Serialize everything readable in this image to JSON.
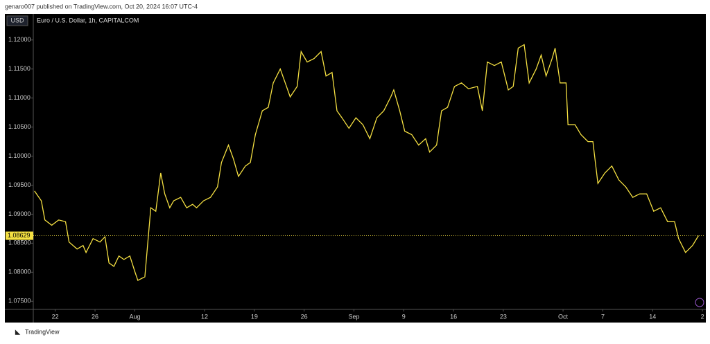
{
  "header": {
    "byline": "genaro007 published on TradingView.com, Oct 20, 2024 16:07 UTC-4"
  },
  "chart_data": {
    "type": "line",
    "title": "Euro / U.S. Dollar, 1h, CAPITALCOM",
    "currency": "USD",
    "color": "#f5e042",
    "x": [
      -2.08,
      -1.39,
      -1.04,
      -0.35,
      0.35,
      1.04,
      1.39,
      2.2,
      2.8,
      3.1,
      3.8,
      4.5,
      5.0,
      5.4,
      5.9,
      6.4,
      6.9,
      7.5,
      8.0,
      8.3,
      9.0,
      9.6,
      10.1,
      10.6,
      11.0,
      11.5,
      11.9,
      12.6,
      13.2,
      13.8,
      14.2,
      14.9,
      15.6,
      16.3,
      16.7,
      17.4,
      17.9,
      18.4,
      19.1,
      19.6,
      20.1,
      20.8,
      21.4,
      21.9,
      22.6,
      23.1,
      23.6,
      24.3,
      24.7,
      25.3,
      26.0,
      26.7,
      27.2,
      27.8,
      28.3,
      28.8,
      29.5,
      30.2,
      30.9,
      31.6,
      32.3,
      33.0,
      33.7,
      34.0,
      34.6,
      35.1,
      35.8,
      36.5,
      37.2,
      37.6,
      38.3,
      38.8,
      39.4,
      40.1,
      40.8,
      41.5,
      42.4,
      42.9,
      43.4,
      44.1,
      44.8,
      45.5,
      46.0,
      46.5,
      47.1,
      47.6,
      48.3,
      48.8,
      49.3,
      49.9,
      50.2,
      50.7,
      51.3,
      51.5,
      52.2,
      52.8,
      53.5,
      54.0,
      54.5,
      55.2,
      55.9,
      56.6,
      57.3,
      58.0,
      58.7,
      59.4,
      60.1,
      60.8,
      61.5,
      62.2,
      62.6,
      63.3,
      64.0,
      64.6
    ],
    "values": [
      1.094,
      1.0923,
      1.089,
      1.0881,
      1.089,
      1.0887,
      1.0852,
      1.084,
      1.0846,
      1.0834,
      1.0858,
      1.0852,
      1.0861,
      1.0816,
      1.081,
      1.0828,
      1.0822,
      1.0828,
      1.0801,
      1.0786,
      1.0792,
      1.0911,
      1.0905,
      1.0971,
      1.0935,
      1.0911,
      1.0923,
      1.0929,
      1.0911,
      1.0917,
      1.0911,
      1.0923,
      1.0929,
      1.0947,
      1.0989,
      1.1019,
      1.0995,
      1.0965,
      1.0983,
      1.0989,
      1.1037,
      1.1078,
      1.1084,
      1.1126,
      1.115,
      1.1126,
      1.1102,
      1.112,
      1.118,
      1.1162,
      1.1168,
      1.118,
      1.1138,
      1.1144,
      1.1078,
      1.1066,
      1.1048,
      1.1066,
      1.1054,
      1.103,
      1.1066,
      1.1078,
      1.1102,
      1.1114,
      1.1078,
      1.1043,
      1.1037,
      1.1019,
      1.103,
      1.1007,
      1.1019,
      1.1078,
      1.1084,
      1.112,
      1.1126,
      1.1116,
      1.112,
      1.1078,
      1.1162,
      1.1156,
      1.1162,
      1.1114,
      1.112,
      1.1186,
      1.1192,
      1.1126,
      1.115,
      1.1174,
      1.1138,
      1.1168,
      1.1186,
      1.1126,
      1.1126,
      1.1054,
      1.1054,
      1.1037,
      1.1025,
      1.1025,
      1.0953,
      1.0971,
      1.0983,
      1.0959,
      1.0947,
      1.0929,
      1.0935,
      1.0935,
      1.0905,
      1.0911,
      1.0887,
      1.0887,
      1.0858,
      1.0834,
      1.0846,
      1.08629
    ],
    "xlim": [
      -2.2,
      65.2
    ],
    "ylim": [
      1.0736,
      1.1245
    ],
    "xticks": [
      {
        "value": 0,
        "label": "22"
      },
      {
        "value": 4,
        "label": "26"
      },
      {
        "value": 8,
        "label": "Aug"
      },
      {
        "value": 15,
        "label": "12"
      },
      {
        "value": 20,
        "label": "19"
      },
      {
        "value": 25,
        "label": "26"
      },
      {
        "value": 30,
        "label": "Sep"
      },
      {
        "value": 35,
        "label": "9"
      },
      {
        "value": 40,
        "label": "16"
      },
      {
        "value": 45,
        "label": "23"
      },
      {
        "value": 51,
        "label": "Oct"
      },
      {
        "value": 55,
        "label": "7"
      },
      {
        "value": 60,
        "label": "14"
      },
      {
        "value": 65,
        "label": "2"
      }
    ],
    "yticks": [
      {
        "value": 1.075,
        "label": "1.07500"
      },
      {
        "value": 1.08,
        "label": "1.08000"
      },
      {
        "value": 1.085,
        "label": "1.08500"
      },
      {
        "value": 1.09,
        "label": "1.09000"
      },
      {
        "value": 1.095,
        "label": "1.09500"
      },
      {
        "value": 1.1,
        "label": "1.10000"
      },
      {
        "value": 1.105,
        "label": "1.10500"
      },
      {
        "value": 1.11,
        "label": "1.11000"
      },
      {
        "value": 1.115,
        "label": "1.11500"
      },
      {
        "value": 1.12,
        "label": "1.12000"
      }
    ],
    "last_price": 1.08629
  },
  "footer": {
    "brand": "TradingView"
  }
}
